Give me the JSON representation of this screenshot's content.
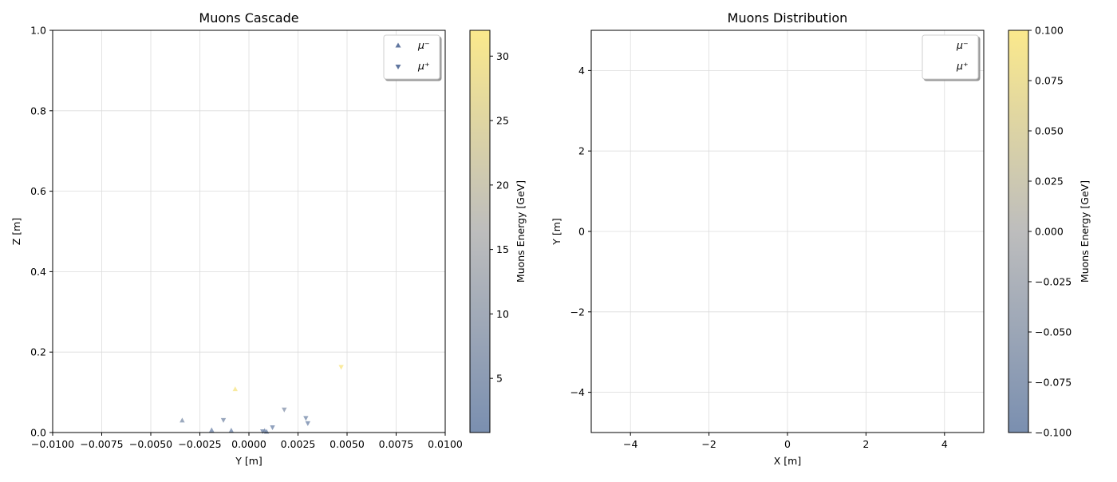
{
  "chart_data": [
    {
      "type": "scatter",
      "title": "Muons Cascade",
      "xlabel": "Y [m]",
      "ylabel": "Z [m]",
      "xlim": [
        -0.01,
        0.01
      ],
      "ylim": [
        0,
        1.0
      ],
      "xticks": [
        -0.01,
        -0.0075,
        -0.005,
        -0.0025,
        0.0,
        0.0025,
        0.005,
        0.0075,
        0.01
      ],
      "xtick_labels": [
        "−0.0100",
        "−0.0075",
        "−0.0050",
        "−0.0025",
        "0.0000",
        "0.0025",
        "0.0050",
        "0.0075",
        "0.0100"
      ],
      "yticks": [
        0.0,
        0.2,
        0.4,
        0.6,
        0.8,
        1.0
      ],
      "ytick_labels": [
        "0.0",
        "0.2",
        "0.4",
        "0.6",
        "0.8",
        "1.0"
      ],
      "grid": true,
      "legend_position": "top-right",
      "series": [
        {
          "name": "μ⁻",
          "marker": "triangle-up",
          "points": [
            {
              "x": -0.0034,
              "y": 0.03,
              "energy": 4.5
            },
            {
              "x": -0.0019,
              "y": 0.006,
              "energy": 1.5
            },
            {
              "x": -0.0009,
              "y": 0.005,
              "energy": 1.5
            },
            {
              "x": 0.0008,
              "y": 0.004,
              "energy": 1.5
            },
            {
              "x": 0.0009,
              "y": 0.002,
              "energy": 1.5
            },
            {
              "x": -0.0007,
              "y": 0.108,
              "energy": 31.0
            }
          ]
        },
        {
          "name": "μ⁺",
          "marker": "triangle-down",
          "points": [
            {
              "x": -0.0013,
              "y": 0.031,
              "energy": 3.5
            },
            {
              "x": 0.0007,
              "y": 0.003,
              "energy": 1.5
            },
            {
              "x": 0.0012,
              "y": 0.013,
              "energy": 1.5
            },
            {
              "x": 0.0018,
              "y": 0.057,
              "energy": 6.0
            },
            {
              "x": 0.0029,
              "y": 0.036,
              "energy": 2.5
            },
            {
              "x": 0.003,
              "y": 0.023,
              "energy": 1.5
            },
            {
              "x": 0.0047,
              "y": 0.163,
              "energy": 31.5
            }
          ]
        }
      ],
      "colorbar": {
        "label": "Muons Energy [GeV]",
        "range": [
          0.8,
          32.0
        ],
        "ticks": [
          5,
          10,
          15,
          20,
          25,
          30
        ],
        "tick_labels": [
          "5",
          "10",
          "15",
          "20",
          "25",
          "30"
        ],
        "color_low": "#7a8fb0",
        "color_high": "#fbe98c"
      }
    },
    {
      "type": "scatter",
      "title": "Muons Distribution",
      "xlabel": "X [m]",
      "ylabel": "Y [m]",
      "xlim": [
        -5,
        5
      ],
      "ylim": [
        -5,
        5
      ],
      "xticks": [
        -4,
        -2,
        0,
        2,
        4
      ],
      "xtick_labels": [
        "−4",
        "−2",
        "0",
        "2",
        "4"
      ],
      "yticks": [
        -4,
        -2,
        0,
        2,
        4
      ],
      "ytick_labels": [
        "−4",
        "−2",
        "0",
        "2",
        "4"
      ],
      "grid": true,
      "legend_position": "top-right",
      "series": [
        {
          "name": "μ⁻",
          "marker": "none",
          "points": []
        },
        {
          "name": "μ⁺",
          "marker": "none",
          "points": []
        }
      ],
      "colorbar": {
        "label": "Muons Energy [GeV]",
        "range": [
          -0.1,
          0.1
        ],
        "ticks": [
          -0.1,
          -0.075,
          -0.05,
          -0.025,
          0.0,
          0.025,
          0.05,
          0.075,
          0.1
        ],
        "tick_labels": [
          "−0.100",
          "−0.075",
          "−0.050",
          "−0.025",
          "0.000",
          "0.025",
          "0.050",
          "0.075",
          "0.100"
        ],
        "color_low": "#7a8fb0",
        "color_high": "#fbe98c"
      }
    }
  ]
}
